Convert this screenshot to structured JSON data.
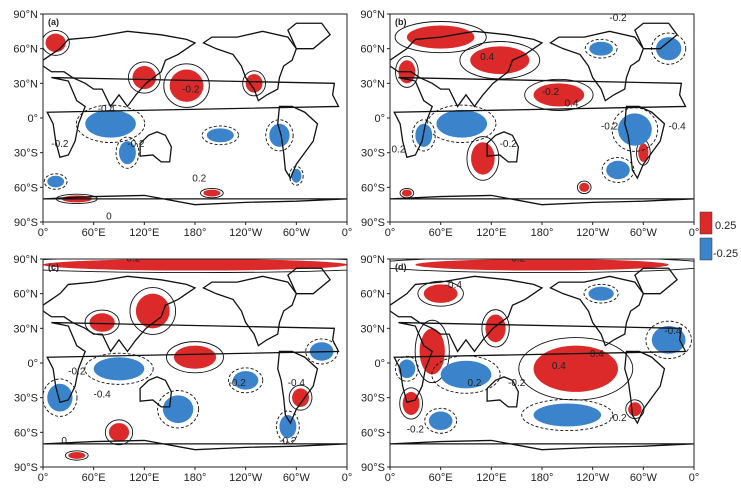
{
  "colors": {
    "positive": "#dc2a2a",
    "negative": "#3b84cc",
    "land": "#111111",
    "contour": "#111111"
  },
  "lat_ticks": [
    "90°N",
    "60°N",
    "30°N",
    "0°",
    "30°S",
    "60°S",
    "90°S"
  ],
  "lon_ticks": [
    "0°",
    "60°E",
    "120°E",
    "180°",
    "120°W",
    "60°W",
    "0°"
  ],
  "panels": [
    {
      "id": "a",
      "label": "(a)",
      "blobs": [
        {
          "sign": "pos",
          "lon": 170,
          "lat": 28,
          "rx": 20,
          "ry": 14
        },
        {
          "sign": "pos",
          "lon": 120,
          "lat": 35,
          "rx": 14,
          "ry": 10
        },
        {
          "sign": "pos",
          "lon": 15,
          "lat": 65,
          "rx": 12,
          "ry": 8
        },
        {
          "sign": "pos",
          "lon": 250,
          "lat": 30,
          "rx": 10,
          "ry": 8
        },
        {
          "sign": "pos",
          "lon": 200,
          "lat": -65,
          "rx": 10,
          "ry": 3
        },
        {
          "sign": "pos",
          "lon": 40,
          "lat": -70,
          "rx": 18,
          "ry": 3
        },
        {
          "sign": "neg",
          "lon": 80,
          "lat": -5,
          "rx": 30,
          "ry": 12
        },
        {
          "sign": "neg",
          "lon": 100,
          "lat": -30,
          "rx": 10,
          "ry": 10
        },
        {
          "sign": "neg",
          "lon": 210,
          "lat": -15,
          "rx": 16,
          "ry": 6
        },
        {
          "sign": "neg",
          "lon": 280,
          "lat": -15,
          "rx": 12,
          "ry": 10
        },
        {
          "sign": "neg",
          "lon": 15,
          "lat": -55,
          "rx": 10,
          "ry": 5
        },
        {
          "sign": "neg",
          "lon": 300,
          "lat": -50,
          "rx": 6,
          "ry": 6
        }
      ],
      "contour_labels": [
        {
          "text": "-0.2",
          "lon": 175,
          "lat": 22
        },
        {
          "text": "-0.4",
          "lon": 75,
          "lat": 5
        },
        {
          "text": "-0.2",
          "lon": 20,
          "lat": -25
        },
        {
          "text": "0.2",
          "lon": 185,
          "lat": -55
        },
        {
          "text": "-0.2",
          "lon": 110,
          "lat": -25
        },
        {
          "text": "0",
          "lon": 78,
          "lat": -88
        }
      ]
    },
    {
      "id": "b",
      "label": "(b)",
      "blobs": [
        {
          "sign": "pos",
          "lon": 60,
          "lat": 70,
          "rx": 40,
          "ry": 10
        },
        {
          "sign": "pos",
          "lon": 130,
          "lat": 50,
          "rx": 35,
          "ry": 12
        },
        {
          "sign": "pos",
          "lon": 200,
          "lat": 20,
          "rx": 30,
          "ry": 10
        },
        {
          "sign": "pos",
          "lon": 20,
          "lat": 40,
          "rx": 10,
          "ry": 10
        },
        {
          "sign": "pos",
          "lon": 110,
          "lat": -35,
          "rx": 14,
          "ry": 14
        },
        {
          "sign": "pos",
          "lon": 300,
          "lat": -30,
          "rx": 6,
          "ry": 8
        },
        {
          "sign": "pos",
          "lon": 20,
          "lat": -65,
          "rx": 6,
          "ry": 3
        },
        {
          "sign": "pos",
          "lon": 230,
          "lat": -60,
          "rx": 6,
          "ry": 4
        },
        {
          "sign": "neg",
          "lon": 85,
          "lat": -5,
          "rx": 30,
          "ry": 12
        },
        {
          "sign": "neg",
          "lon": 290,
          "lat": -10,
          "rx": 20,
          "ry": 14
        },
        {
          "sign": "neg",
          "lon": 40,
          "lat": -15,
          "rx": 10,
          "ry": 10
        },
        {
          "sign": "neg",
          "lon": 330,
          "lat": 60,
          "rx": 15,
          "ry": 10
        },
        {
          "sign": "neg",
          "lon": 250,
          "lat": 60,
          "rx": 14,
          "ry": 6
        },
        {
          "sign": "neg",
          "lon": 270,
          "lat": -45,
          "rx": 14,
          "ry": 8
        }
      ],
      "contour_labels": [
        {
          "text": "-0.2",
          "lon": 270,
          "lat": 84
        },
        {
          "text": "-0.2",
          "lon": 190,
          "lat": 20
        },
        {
          "text": "0.4",
          "lon": 115,
          "lat": 50
        },
        {
          "text": "0.4",
          "lon": 215,
          "lat": 10
        },
        {
          "text": "-0.2",
          "lon": 140,
          "lat": -25
        },
        {
          "text": "-0.4",
          "lon": 340,
          "lat": -10
        },
        {
          "text": "-0.2",
          "lon": 260,
          "lat": -10
        },
        {
          "text": "0.2",
          "lon": 10,
          "lat": -30
        }
      ]
    },
    {
      "id": "c",
      "label": "(c)",
      "blobs": [
        {
          "sign": "pos",
          "lon": 180,
          "lat": 85,
          "rx": 180,
          "ry": 5
        },
        {
          "sign": "pos",
          "lon": 130,
          "lat": 45,
          "rx": 20,
          "ry": 15
        },
        {
          "sign": "pos",
          "lon": 180,
          "lat": 5,
          "rx": 25,
          "ry": 10
        },
        {
          "sign": "pos",
          "lon": 70,
          "lat": 35,
          "rx": 15,
          "ry": 8
        },
        {
          "sign": "pos",
          "lon": 90,
          "lat": -60,
          "rx": 12,
          "ry": 8
        },
        {
          "sign": "pos",
          "lon": 305,
          "lat": -30,
          "rx": 10,
          "ry": 8
        },
        {
          "sign": "pos",
          "lon": 40,
          "lat": -80,
          "rx": 10,
          "ry": 3
        },
        {
          "sign": "neg",
          "lon": 90,
          "lat": -5,
          "rx": 30,
          "ry": 10
        },
        {
          "sign": "neg",
          "lon": 20,
          "lat": -30,
          "rx": 15,
          "ry": 12
        },
        {
          "sign": "neg",
          "lon": 160,
          "lat": -40,
          "rx": 18,
          "ry": 12
        },
        {
          "sign": "neg",
          "lon": 240,
          "lat": -15,
          "rx": 15,
          "ry": 8
        },
        {
          "sign": "neg",
          "lon": 330,
          "lat": 10,
          "rx": 14,
          "ry": 8
        },
        {
          "sign": "neg",
          "lon": 290,
          "lat": -55,
          "rx": 10,
          "ry": 10
        }
      ],
      "contour_labels": [
        {
          "text": "-0.2",
          "lon": 105,
          "lat": 88
        },
        {
          "text": "-0.2",
          "lon": 40,
          "lat": -10
        },
        {
          "text": "-0.4",
          "lon": 70,
          "lat": -30
        },
        {
          "text": "-0.2",
          "lon": 230,
          "lat": -20
        },
        {
          "text": "-0.4",
          "lon": 300,
          "lat": -20
        },
        {
          "text": "-0.2",
          "lon": 290,
          "lat": -70
        },
        {
          "text": "0",
          "lon": 25,
          "lat": -70
        }
      ]
    },
    {
      "id": "d",
      "label": "(d)",
      "blobs": [
        {
          "sign": "pos",
          "lon": 180,
          "lat": 85,
          "rx": 150,
          "ry": 5
        },
        {
          "sign": "pos",
          "lon": 220,
          "lat": -5,
          "rx": 50,
          "ry": 20
        },
        {
          "sign": "pos",
          "lon": 50,
          "lat": 10,
          "rx": 15,
          "ry": 20
        },
        {
          "sign": "pos",
          "lon": 125,
          "lat": 30,
          "rx": 12,
          "ry": 12
        },
        {
          "sign": "pos",
          "lon": 60,
          "lat": 60,
          "rx": 20,
          "ry": 8
        },
        {
          "sign": "pos",
          "lon": 25,
          "lat": -35,
          "rx": 10,
          "ry": 10
        },
        {
          "sign": "pos",
          "lon": 290,
          "lat": -40,
          "rx": 8,
          "ry": 6
        },
        {
          "sign": "neg",
          "lon": 90,
          "lat": -10,
          "rx": 30,
          "ry": 12
        },
        {
          "sign": "neg",
          "lon": 210,
          "lat": -45,
          "rx": 40,
          "ry": 10
        },
        {
          "sign": "neg",
          "lon": 60,
          "lat": -50,
          "rx": 14,
          "ry": 8
        },
        {
          "sign": "neg",
          "lon": 330,
          "lat": 20,
          "rx": 20,
          "ry": 12
        },
        {
          "sign": "neg",
          "lon": 20,
          "lat": -5,
          "rx": 10,
          "ry": 8
        },
        {
          "sign": "neg",
          "lon": 250,
          "lat": 60,
          "rx": 15,
          "ry": 6
        }
      ],
      "contour_labels": [
        {
          "text": "-0.4",
          "lon": 75,
          "lat": 65
        },
        {
          "text": "-0.2",
          "lon": 150,
          "lat": 88
        },
        {
          "text": "0.4",
          "lon": 200,
          "lat": -5
        },
        {
          "text": "0.4",
          "lon": 245,
          "lat": 5
        },
        {
          "text": "-0.4",
          "lon": 335,
          "lat": 25
        },
        {
          "text": "-0.2",
          "lon": 150,
          "lat": -20
        },
        {
          "text": "-0.2",
          "lon": 30,
          "lat": -60
        },
        {
          "text": "-0.2",
          "lon": 270,
          "lat": -50
        },
        {
          "text": "0.2",
          "lon": 100,
          "lat": -20
        }
      ]
    }
  ],
  "colorbar": {
    "max_label": "0.25",
    "min_label": "-0.25"
  }
}
